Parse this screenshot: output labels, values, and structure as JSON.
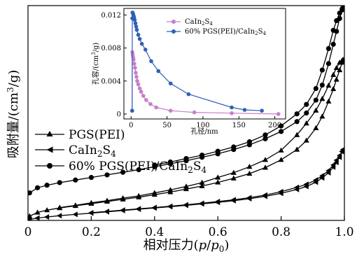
{
  "chart_data": [
    {
      "type": "line",
      "role": "main",
      "xlabel": "相对压力(p/p0)",
      "ylabel": "吸附量/(cm³/g)",
      "xlim": [
        0,
        1.0
      ],
      "ylim": [
        0,
        1
      ],
      "y_tick_labels": "none",
      "xticks": [
        0,
        0.2,
        0.4,
        0.6,
        0.8,
        1.0
      ],
      "xtick_labels": [
        "0",
        "0.2",
        "0.4",
        "0.6",
        "0.8",
        "1.0"
      ],
      "legend": {
        "placement": "left",
        "entries": [
          {
            "label": "PGS(PEI)",
            "marker": "triangle-up"
          },
          {
            "label": "CaIn2S4",
            "marker": "triangle-left"
          },
          {
            "label": "60% PGS(PEI)/CaIn2S4",
            "marker": "circle"
          }
        ]
      },
      "series": [
        {
          "name": "PGS(PEI)",
          "marker": "triangle-up",
          "adsorption": [
            [
              0.005,
              0.02
            ],
            [
              0.03,
              0.037
            ],
            [
              0.06,
              0.048
            ],
            [
              0.1,
              0.058
            ],
            [
              0.15,
              0.068
            ],
            [
              0.2,
              0.078
            ],
            [
              0.25,
              0.088
            ],
            [
              0.3,
              0.098
            ],
            [
              0.35,
              0.108
            ],
            [
              0.4,
              0.12
            ],
            [
              0.45,
              0.132
            ],
            [
              0.5,
              0.146
            ],
            [
              0.55,
              0.16
            ],
            [
              0.6,
              0.177
            ],
            [
              0.65,
              0.196
            ],
            [
              0.7,
              0.218
            ],
            [
              0.75,
              0.246
            ],
            [
              0.8,
              0.282
            ],
            [
              0.85,
              0.33
            ],
            [
              0.88,
              0.372
            ],
            [
              0.91,
              0.43
            ],
            [
              0.93,
              0.484
            ],
            [
              0.95,
              0.554
            ],
            [
              0.965,
              0.612
            ],
            [
              0.975,
              0.656
            ],
            [
              0.985,
              0.7
            ],
            [
              0.993,
              0.735
            ],
            [
              0.996,
              0.748
            ]
          ],
          "desorption": [
            [
              0.996,
              0.748
            ],
            [
              0.993,
              0.745
            ],
            [
              0.985,
              0.735
            ],
            [
              0.975,
              0.71
            ],
            [
              0.965,
              0.678
            ],
            [
              0.95,
              0.628
            ],
            [
              0.93,
              0.566
            ],
            [
              0.91,
              0.512
            ],
            [
              0.88,
              0.452
            ],
            [
              0.85,
              0.398
            ],
            [
              0.8,
              0.326
            ],
            [
              0.75,
              0.282
            ],
            [
              0.7,
              0.25
            ],
            [
              0.65,
              0.222
            ],
            [
              0.6,
              0.2
            ],
            [
              0.55,
              0.176
            ],
            [
              0.5,
              0.158
            ],
            [
              0.45,
              0.142
            ],
            [
              0.4,
              0.128
            ],
            [
              0.35,
              0.114
            ],
            [
              0.3,
              0.104
            ],
            [
              0.25,
              0.092
            ],
            [
              0.2,
              0.082
            ],
            [
              0.15,
              0.07
            ],
            [
              0.1,
              0.06
            ]
          ]
        },
        {
          "name": "CaIn2S4",
          "marker": "triangle-left",
          "adsorption": [
            [
              0.005,
              0.005
            ],
            [
              0.03,
              0.011
            ],
            [
              0.06,
              0.016
            ],
            [
              0.1,
              0.022
            ],
            [
              0.15,
              0.028
            ],
            [
              0.2,
              0.034
            ],
            [
              0.25,
              0.04
            ],
            [
              0.3,
              0.046
            ],
            [
              0.35,
              0.052
            ],
            [
              0.4,
              0.058
            ],
            [
              0.45,
              0.064
            ],
            [
              0.5,
              0.07
            ],
            [
              0.55,
              0.077
            ],
            [
              0.6,
              0.084
            ],
            [
              0.65,
              0.092
            ],
            [
              0.7,
              0.101
            ],
            [
              0.75,
              0.112
            ],
            [
              0.8,
              0.126
            ],
            [
              0.85,
              0.144
            ],
            [
              0.88,
              0.158
            ],
            [
              0.91,
              0.178
            ],
            [
              0.93,
              0.198
            ],
            [
              0.95,
              0.222
            ],
            [
              0.965,
              0.248
            ],
            [
              0.975,
              0.27
            ],
            [
              0.985,
              0.294
            ],
            [
              0.993,
              0.32
            ],
            [
              0.996,
              0.33
            ]
          ],
          "desorption": [
            [
              0.996,
              0.33
            ],
            [
              0.993,
              0.322
            ],
            [
              0.985,
              0.302
            ],
            [
              0.975,
              0.28
            ],
            [
              0.965,
              0.258
            ],
            [
              0.95,
              0.232
            ],
            [
              0.93,
              0.208
            ],
            [
              0.91,
              0.188
            ],
            [
              0.88,
              0.168
            ],
            [
              0.85,
              0.154
            ],
            [
              0.8,
              0.134
            ],
            [
              0.75,
              0.118
            ],
            [
              0.7,
              0.106
            ],
            [
              0.65,
              0.096
            ],
            [
              0.6,
              0.088
            ],
            [
              0.55,
              0.08
            ],
            [
              0.5,
              0.073
            ],
            [
              0.45,
              0.066
            ],
            [
              0.4,
              0.06
            ],
            [
              0.35,
              0.054
            ],
            [
              0.3,
              0.048
            ],
            [
              0.25,
              0.042
            ],
            [
              0.2,
              0.036
            ]
          ]
        },
        {
          "name": "60% PGS(PEI)/CaIn2S4",
          "marker": "circle",
          "adsorption": [
            [
              0.005,
              0.128
            ],
            [
              0.03,
              0.152
            ],
            [
              0.06,
              0.164
            ],
            [
              0.1,
              0.176
            ],
            [
              0.15,
              0.188
            ],
            [
              0.2,
              0.2
            ],
            [
              0.25,
              0.212
            ],
            [
              0.3,
              0.224
            ],
            [
              0.35,
              0.236
            ],
            [
              0.4,
              0.25
            ],
            [
              0.45,
              0.264
            ],
            [
              0.5,
              0.278
            ],
            [
              0.55,
              0.294
            ],
            [
              0.6,
              0.31
            ],
            [
              0.65,
              0.33
            ],
            [
              0.7,
              0.352
            ],
            [
              0.75,
              0.38
            ],
            [
              0.8,
              0.414
            ],
            [
              0.85,
              0.46
            ],
            [
              0.88,
              0.5
            ],
            [
              0.91,
              0.56
            ],
            [
              0.93,
              0.63
            ],
            [
              0.95,
              0.73
            ],
            [
              0.965,
              0.82
            ],
            [
              0.975,
              0.88
            ],
            [
              0.985,
              0.94
            ],
            [
              0.993,
              0.98
            ],
            [
              0.996,
              0.99
            ]
          ],
          "desorption": [
            [
              0.996,
              0.99
            ],
            [
              0.993,
              0.985
            ],
            [
              0.985,
              0.965
            ],
            [
              0.975,
              0.93
            ],
            [
              0.965,
              0.885
            ],
            [
              0.95,
              0.8
            ],
            [
              0.93,
              0.7
            ],
            [
              0.91,
              0.614
            ],
            [
              0.88,
              0.54
            ],
            [
              0.85,
              0.496
            ],
            [
              0.8,
              0.44
            ],
            [
              0.75,
              0.398
            ],
            [
              0.7,
              0.366
            ],
            [
              0.65,
              0.342
            ],
            [
              0.6,
              0.322
            ],
            [
              0.55,
              0.304
            ],
            [
              0.5,
              0.288
            ],
            [
              0.45,
              0.272
            ],
            [
              0.4,
              0.258
            ]
          ]
        }
      ]
    },
    {
      "type": "line",
      "role": "inset",
      "xlabel": "孔径/nm",
      "ylabel": "孔容/(cm³/g)",
      "xlim": [
        -10,
        215
      ],
      "ylim": [
        -0.0006,
        0.0128
      ],
      "xticks": [
        0,
        50,
        100,
        150,
        200
      ],
      "xtick_labels": [
        "0",
        "50",
        "100",
        "150",
        "200"
      ],
      "yticks": [
        0,
        0.004,
        0.008,
        0.012
      ],
      "ytick_labels": [
        "0",
        "0.004",
        "0.008",
        "0.012"
      ],
      "legend": {
        "placement": "top-right",
        "entries": [
          {
            "label": "CaIn2S4",
            "color": "#c77fc9"
          },
          {
            "label": "60% PGS(PEI)/CaIn2S4",
            "color": "#2f5fb8"
          }
        ]
      },
      "series": [
        {
          "name": "CaIn2S4",
          "color": "#c77fc9",
          "points": [
            [
              1.5,
              0.0004
            ],
            [
              1.8,
              0.0075
            ],
            [
              2.2,
              0.0072
            ],
            [
              2.8,
              0.0069
            ],
            [
              3.5,
              0.0066
            ],
            [
              4.5,
              0.0061
            ],
            [
              5.5,
              0.0056
            ],
            [
              6.5,
              0.005
            ],
            [
              7.5,
              0.0045
            ],
            [
              8.5,
              0.004
            ],
            [
              10,
              0.0036
            ],
            [
              12,
              0.0031
            ],
            [
              14,
              0.0027
            ],
            [
              17,
              0.0022
            ],
            [
              21,
              0.0017
            ],
            [
              27,
              0.0012
            ],
            [
              35,
              0.0008
            ],
            [
              55,
              0.0004
            ],
            [
              88,
              0.0002
            ],
            [
              140,
              0.0001
            ],
            [
              205,
              0.0
            ]
          ]
        },
        {
          "name": "60% PGS(PEI)/CaIn2S4",
          "color": "#2f5fb8",
          "points": [
            [
              1.5,
              0.0004
            ],
            [
              1.7,
              0.0116
            ],
            [
              2.0,
              0.0123
            ],
            [
              2.4,
              0.0122
            ],
            [
              2.9,
              0.0121
            ],
            [
              3.5,
              0.0119
            ],
            [
              4.2,
              0.0117
            ],
            [
              5,
              0.0114
            ],
            [
              6,
              0.011
            ],
            [
              7,
              0.0106
            ],
            [
              8,
              0.0102
            ],
            [
              10,
              0.0096
            ],
            [
              12,
              0.0091
            ],
            [
              15,
              0.0085
            ],
            [
              20,
              0.0078
            ],
            [
              28,
              0.0064
            ],
            [
              38,
              0.0052
            ],
            [
              55,
              0.0037
            ],
            [
              80,
              0.0024
            ],
            [
              140,
              0.0008
            ],
            [
              158,
              0.0005
            ],
            [
              182,
              0.0004
            ]
          ]
        }
      ]
    }
  ]
}
